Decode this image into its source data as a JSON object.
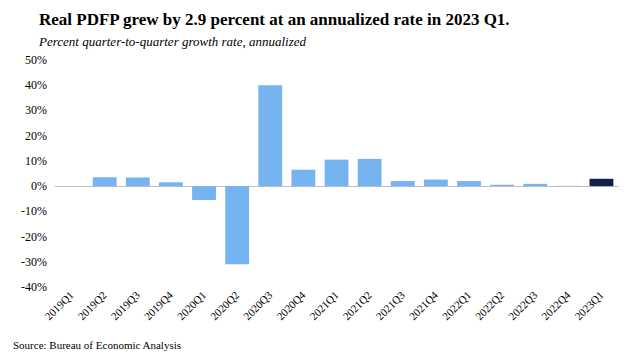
{
  "chart_data": {
    "type": "bar",
    "title": "Real PDFP grew by 2.9 percent at an annualized rate in 2023 Q1.",
    "subtitle": "Percent quarter-to-quarter growth rate, annualized",
    "source": "Source: Bureau of Economic Analysis",
    "categories": [
      "2019Q1",
      "2019Q2",
      "2019Q3",
      "2019Q4",
      "2020Q1",
      "2020Q2",
      "2020Q3",
      "2020Q4",
      "2021Q1",
      "2021Q2",
      "2021Q3",
      "2021Q4",
      "2022Q1",
      "2022Q2",
      "2022Q3",
      "2022Q4",
      "2023Q1"
    ],
    "values": [
      null,
      3.5,
      3.4,
      1.5,
      -5.5,
      -31,
      40,
      6.5,
      10.5,
      10.8,
      2.0,
      2.6,
      2.0,
      0.5,
      0.9,
      0.1,
      2.9
    ],
    "colors": [
      "#75b4f0",
      "#75b4f0",
      "#75b4f0",
      "#75b4f0",
      "#75b4f0",
      "#75b4f0",
      "#75b4f0",
      "#75b4f0",
      "#75b4f0",
      "#75b4f0",
      "#75b4f0",
      "#75b4f0",
      "#75b4f0",
      "#75b4f0",
      "#75b4f0",
      "#75b4f0",
      "#0f2246"
    ],
    "ylim": [
      -40,
      50
    ],
    "yticks": [
      {
        "value": -40,
        "label": "-40%"
      },
      {
        "value": -30,
        "label": "-30%"
      },
      {
        "value": -20,
        "label": "-20%"
      },
      {
        "value": -10,
        "label": "-10%"
      },
      {
        "value": 0,
        "label": "0%"
      },
      {
        "value": 10,
        "label": "10%"
      },
      {
        "value": 20,
        "label": "20%"
      },
      {
        "value": 30,
        "label": "30%"
      },
      {
        "value": 40,
        "label": "40%"
      },
      {
        "value": 50,
        "label": "50%"
      }
    ],
    "grid": false
  }
}
